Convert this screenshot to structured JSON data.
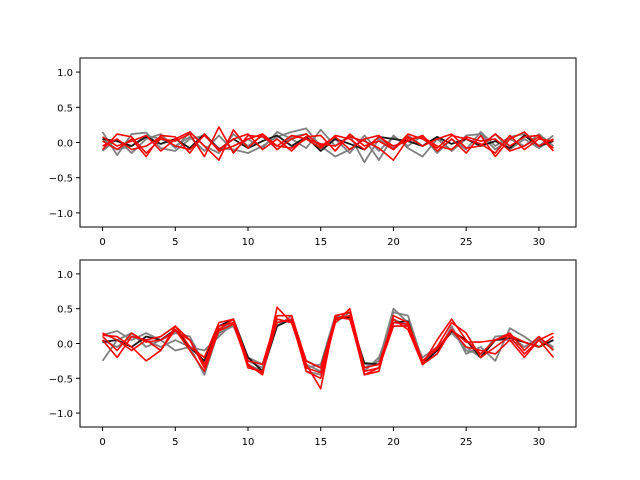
{
  "colors": {
    "gray_series": "#808080",
    "dark_series": "#1a1a1a",
    "red_series": "#ff0000",
    "axes": "#000000"
  },
  "chart_data": [
    {
      "type": "line",
      "title": "",
      "xlabel": "",
      "ylabel": "",
      "xlim": [
        -1.55,
        32.55
      ],
      "ylim": [
        -1.2,
        1.2
      ],
      "xticks": [
        0,
        5,
        10,
        15,
        20,
        25,
        30
      ],
      "yticks": [
        -1.0,
        -0.5,
        0.0,
        0.5,
        1.0
      ],
      "xtick_labels": [
        "0",
        "5",
        "10",
        "15",
        "20",
        "25",
        "30"
      ],
      "ytick_labels": [
        "−1.0",
        "−0.5",
        "0.0",
        "0.5",
        "1.0"
      ],
      "grid": false,
      "x": [
        0,
        1,
        2,
        3,
        4,
        5,
        6,
        7,
        8,
        9,
        10,
        11,
        12,
        13,
        14,
        15,
        16,
        17,
        18,
        19,
        20,
        21,
        22,
        23,
        24,
        25,
        26,
        27,
        28,
        29,
        30,
        31
      ],
      "series": [
        {
          "color": "gray",
          "values": [
            0.15,
            -0.18,
            0.12,
            0.14,
            -0.08,
            -0.12,
            0.05,
            0.1,
            -0.08,
            -0.1,
            -0.15,
            -0.05,
            0.08,
            0.15,
            0.2,
            -0.05,
            -0.2,
            -0.1,
            0.05,
            -0.25,
            0.1,
            -0.08,
            -0.2,
            0.05,
            -0.12,
            0.1,
            0.12,
            -0.1,
            0.05,
            -0.05,
            0.12,
            -0.05
          ]
        },
        {
          "color": "gray",
          "values": [
            0.05,
            -0.1,
            -0.05,
            0.1,
            0.05,
            -0.05,
            0.08,
            -0.12,
            0.1,
            -0.12,
            0.05,
            -0.08,
            0.15,
            0.05,
            -0.08,
            0.18,
            -0.05,
            0.1,
            -0.28,
            0.05,
            -0.08,
            0.1,
            -0.05,
            0.08,
            -0.12,
            0.05,
            -0.05,
            0.12,
            -0.1,
            0.05,
            -0.08,
            0.05
          ]
        },
        {
          "color": "gray",
          "values": [
            -0.12,
            0.05,
            -0.15,
            0.05,
            0.12,
            -0.08,
            0.15,
            -0.05,
            -0.15,
            0.12,
            -0.05,
            0.1,
            -0.1,
            0.08,
            0.12,
            -0.08,
            0.05,
            -0.15,
            0.1,
            -0.12,
            0.08,
            -0.05,
            0.1,
            -0.15,
            0.05,
            -0.1,
            0.15,
            -0.05,
            0.08,
            0.12,
            -0.05,
            0.1
          ]
        },
        {
          "color": "dark",
          "values": [
            0.05,
            0.02,
            -0.05,
            0.08,
            -0.02,
            0.05,
            -0.08,
            0.12,
            -0.1,
            0.05,
            -0.08,
            0.02,
            0.1,
            -0.05,
            0.08,
            -0.12,
            0.05,
            -0.02,
            -0.1,
            0.08,
            0.05,
            0.02,
            -0.05,
            0.08,
            -0.02,
            0.05,
            -0.05,
            0.02,
            -0.08,
            0.1,
            -0.05,
            0.02
          ]
        },
        {
          "color": "red",
          "values": [
            -0.1,
            0.12,
            0.08,
            -0.15,
            0.05,
            0.02,
            0.12,
            -0.2,
            0.22,
            -0.15,
            0.1,
            0.08,
            -0.05,
            0.1,
            0.05,
            -0.08,
            0.1,
            0.05,
            -0.1,
            0.08,
            -0.05,
            0.02,
            0.1,
            -0.12,
            0.05,
            -0.15,
            0.1,
            -0.2,
            0.05,
            0.15,
            -0.05,
            0.05
          ]
        },
        {
          "color": "red",
          "values": [
            0.08,
            -0.05,
            0.02,
            0.1,
            -0.12,
            0.05,
            0.15,
            -0.05,
            -0.25,
            0.18,
            -0.08,
            0.12,
            -0.1,
            0.05,
            0.12,
            -0.05,
            0.08,
            -0.1,
            0.05,
            0.1,
            -0.1,
            0.08,
            -0.05,
            0.05,
            0.12,
            -0.08,
            -0.05,
            0.12,
            -0.05,
            0.08,
            0.1,
            -0.12
          ]
        },
        {
          "color": "red",
          "values": [
            -0.05,
            0.05,
            -0.1,
            -0.05,
            0.08,
            -0.05,
            -0.1,
            0.1,
            -0.1,
            0.05,
            0.12,
            -0.1,
            0.05,
            -0.12,
            0.08,
            0.1,
            -0.12,
            0.12,
            -0.05,
            0.02,
            -0.1,
            0.12,
            0.05,
            -0.08,
            0.1,
            0.05,
            -0.02,
            -0.15,
            0.1,
            -0.1,
            0.05,
            0.02
          ]
        },
        {
          "color": "red",
          "values": [
            0.02,
            -0.1,
            0.05,
            -0.2,
            0.1,
            0.08,
            -0.15,
            0.12,
            -0.12,
            -0.05,
            0.05,
            0.12,
            -0.05,
            -0.08,
            0.05,
            -0.02,
            -0.05,
            0.08,
            0.02,
            -0.08,
            -0.25,
            0.05,
            0.08,
            -0.05,
            -0.1,
            0.08,
            0.02,
            0.05,
            -0.12,
            -0.05,
            0.08,
            -0.08
          ]
        }
      ]
    },
    {
      "type": "line",
      "title": "",
      "xlabel": "",
      "ylabel": "",
      "xlim": [
        -1.55,
        32.55
      ],
      "ylim": [
        -1.2,
        1.2
      ],
      "xticks": [
        0,
        5,
        10,
        15,
        20,
        25,
        30
      ],
      "yticks": [
        -1.0,
        -0.5,
        0.0,
        0.5,
        1.0
      ],
      "xtick_labels": [
        "0",
        "5",
        "10",
        "15",
        "20",
        "25",
        "30"
      ],
      "ytick_labels": [
        "−1.0",
        "−0.5",
        "0.0",
        "0.5",
        "1.0"
      ],
      "grid": false,
      "x": [
        0,
        1,
        2,
        3,
        4,
        5,
        6,
        7,
        8,
        9,
        10,
        11,
        12,
        13,
        14,
        15,
        16,
        17,
        18,
        19,
        20,
        21,
        22,
        23,
        24,
        25,
        26,
        27,
        28,
        29,
        30,
        31
      ],
      "series": [
        {
          "color": "gray",
          "values": [
            -0.25,
            0.05,
            0.15,
            -0.05,
            0.05,
            -0.1,
            -0.05,
            -0.45,
            0.2,
            0.3,
            -0.3,
            -0.4,
            0.3,
            0.35,
            -0.4,
            -0.45,
            0.35,
            0.4,
            -0.35,
            -0.25,
            0.5,
            0.3,
            -0.3,
            -0.15,
            0.25,
            -0.15,
            -0.05,
            -0.25,
            0.22,
            0.1,
            -0.05,
            0.05
          ]
        },
        {
          "color": "gray",
          "values": [
            0.12,
            0.18,
            0.05,
            0.15,
            0.05,
            0.15,
            0.1,
            -0.3,
            0.15,
            0.25,
            -0.25,
            -0.35,
            0.25,
            0.4,
            -0.35,
            -0.3,
            0.4,
            0.35,
            -0.3,
            -0.3,
            0.45,
            0.4,
            -0.25,
            -0.1,
            0.2,
            -0.1,
            -0.15,
            0.05,
            0.05,
            -0.05,
            0.05,
            -0.08
          ]
        },
        {
          "color": "gray",
          "values": [
            0.05,
            -0.05,
            0.1,
            0.05,
            -0.05,
            0.05,
            -0.05,
            -0.1,
            0.1,
            0.3,
            -0.2,
            -0.3,
            0.35,
            0.3,
            -0.3,
            -0.4,
            0.3,
            0.45,
            -0.4,
            -0.2,
            0.35,
            0.25,
            -0.2,
            -0.05,
            0.15,
            -0.05,
            -0.2,
            0.1,
            0.12,
            -0.05,
            0.08,
            -0.05
          ]
        },
        {
          "color": "dark",
          "values": [
            0.02,
            0.05,
            -0.05,
            0.1,
            0.05,
            0.2,
            -0.05,
            -0.25,
            0.25,
            0.35,
            -0.2,
            -0.4,
            0.25,
            0.35,
            -0.25,
            -0.35,
            0.35,
            0.38,
            -0.28,
            -0.3,
            0.3,
            0.32,
            -0.3,
            -0.1,
            0.18,
            0.05,
            -0.2,
            0.05,
            0.08,
            0.02,
            -0.05,
            0.05
          ]
        },
        {
          "color": "red",
          "values": [
            0.12,
            0.1,
            -0.05,
            -0.25,
            -0.1,
            0.25,
            0.05,
            -0.3,
            0.25,
            0.3,
            -0.3,
            -0.45,
            0.52,
            0.3,
            -0.3,
            -0.65,
            0.4,
            0.45,
            -0.45,
            -0.4,
            0.4,
            0.3,
            -0.25,
            -0.05,
            0.3,
            0.15,
            -0.2,
            -0.05,
            0.1,
            -0.15,
            0.05,
            0.15
          ]
        },
        {
          "color": "red",
          "values": [
            0.05,
            -0.2,
            0.1,
            0.05,
            -0.1,
            0.2,
            -0.1,
            -0.4,
            0.2,
            0.35,
            -0.25,
            -0.3,
            0.4,
            0.4,
            -0.25,
            -0.35,
            0.35,
            0.4,
            -0.45,
            -0.35,
            0.25,
            0.25,
            -0.3,
            0.05,
            0.35,
            0.05,
            -0.15,
            0.05,
            0.15,
            -0.1,
            0.1,
            -0.1
          ]
        },
        {
          "color": "red",
          "values": [
            0.15,
            0.05,
            -0.1,
            0.05,
            0.1,
            0.25,
            -0.05,
            -0.2,
            0.3,
            0.35,
            -0.35,
            -0.4,
            0.3,
            0.35,
            -0.4,
            -0.5,
            0.3,
            0.5,
            -0.35,
            -0.3,
            0.35,
            0.2,
            -0.3,
            -0.15,
            0.2,
            -0.05,
            -0.1,
            -0.15,
            0.05,
            -0.2,
            0.05,
            -0.2
          ]
        },
        {
          "color": "red",
          "values": [
            0.1,
            -0.1,
            0.15,
            0.02,
            0.05,
            0.18,
            0.05,
            -0.35,
            0.18,
            0.28,
            -0.32,
            -0.42,
            0.35,
            0.3,
            -0.35,
            -0.42,
            0.38,
            0.35,
            -0.4,
            -0.35,
            0.3,
            0.28,
            -0.25,
            -0.08,
            0.2,
            0.02,
            0.02,
            0.05,
            0.12,
            0.02,
            -0.05,
            0.1
          ]
        }
      ]
    }
  ]
}
